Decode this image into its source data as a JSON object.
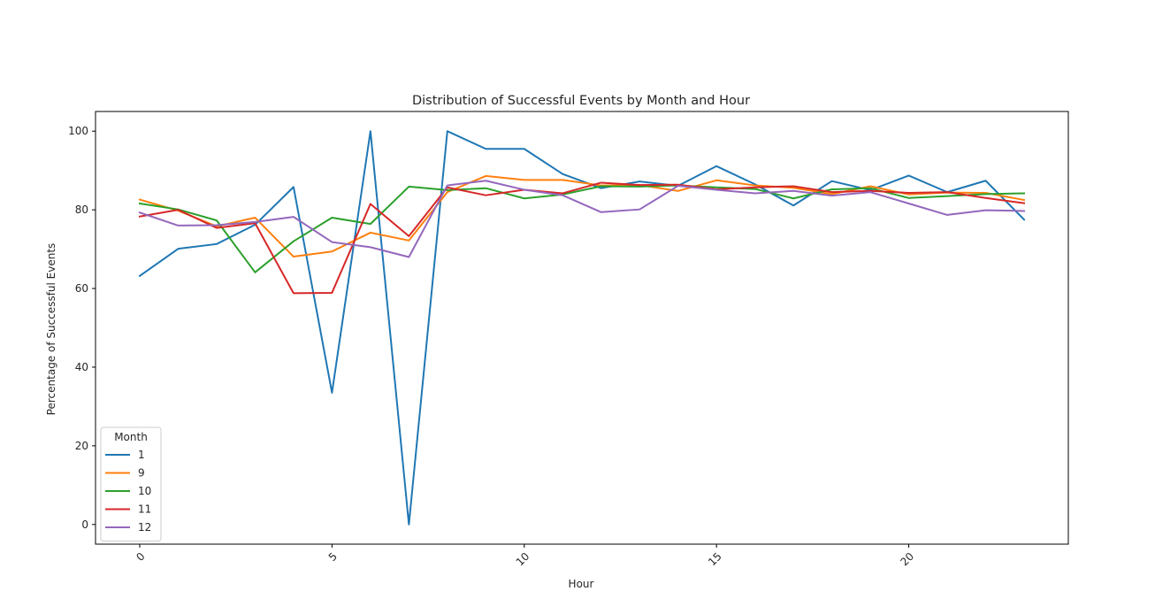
{
  "chart_data": {
    "type": "line",
    "title": "Distribution of Successful Events by Month and Hour",
    "xlabel": "Hour",
    "ylabel": "Percentage of Successful Events",
    "x": [
      0,
      1,
      2,
      3,
      4,
      5,
      6,
      7,
      8,
      9,
      10,
      11,
      12,
      13,
      14,
      15,
      16,
      17,
      18,
      19,
      20,
      21,
      22,
      23
    ],
    "xlim": [
      -1.15,
      24.15
    ],
    "ylim": [
      -5,
      105
    ],
    "xticks": [
      0,
      5,
      10,
      15,
      20
    ],
    "xtick_labels": [
      "0",
      "5",
      "10",
      "15",
      "20"
    ],
    "xtick_rotation": 45,
    "yticks": [
      0,
      20,
      40,
      60,
      80,
      100
    ],
    "ytick_labels": [
      "0",
      "20",
      "40",
      "60",
      "80",
      "100"
    ],
    "grid": false,
    "legend": {
      "title": "Month",
      "position": "lower-left"
    },
    "series": [
      {
        "name": "1",
        "color": "#1f77b4",
        "values": [
          63.2,
          70.1,
          71.3,
          76.2,
          85.8,
          33.5,
          100.0,
          0.0,
          100.0,
          95.5,
          95.5,
          89.1,
          85.5,
          87.2,
          86.1,
          91.1,
          86.5,
          81.1,
          87.3,
          85.0,
          88.7,
          84.5,
          87.4,
          77.5
        ]
      },
      {
        "name": "9",
        "color": "#ff7f0e",
        "values": [
          82.6,
          79.8,
          75.8,
          78.0,
          68.1,
          69.4,
          74.2,
          72.2,
          84.5,
          88.6,
          87.6,
          87.6,
          86.2,
          86.3,
          84.8,
          87.5,
          86.2,
          85.6,
          84.0,
          86.0,
          83.9,
          84.4,
          84.3,
          82.5
        ]
      },
      {
        "name": "10",
        "color": "#2ca02c",
        "values": [
          81.6,
          80.1,
          77.3,
          64.1,
          72.0,
          78.0,
          76.4,
          85.9,
          85.0,
          85.5,
          82.9,
          83.9,
          86.0,
          85.9,
          86.2,
          85.7,
          85.3,
          82.9,
          85.2,
          85.5,
          83.0,
          83.5,
          84.0,
          84.2
        ]
      },
      {
        "name": "11",
        "color": "#d62728",
        "values": [
          78.3,
          80.0,
          75.4,
          76.6,
          58.8,
          58.9,
          81.5,
          73.3,
          85.7,
          83.7,
          85.1,
          84.2,
          86.9,
          86.3,
          86.4,
          85.2,
          85.7,
          86.0,
          84.5,
          84.8,
          84.3,
          84.5,
          83.0,
          81.7
        ]
      },
      {
        "name": "12",
        "color": "#9467bd",
        "values": [
          79.3,
          76.0,
          76.1,
          76.9,
          78.2,
          71.8,
          70.5,
          68.0,
          86.2,
          87.4,
          85.1,
          83.7,
          79.4,
          80.1,
          86.1,
          85.1,
          84.2,
          84.8,
          83.6,
          84.5,
          81.6,
          78.7,
          79.9,
          79.7
        ]
      }
    ]
  }
}
